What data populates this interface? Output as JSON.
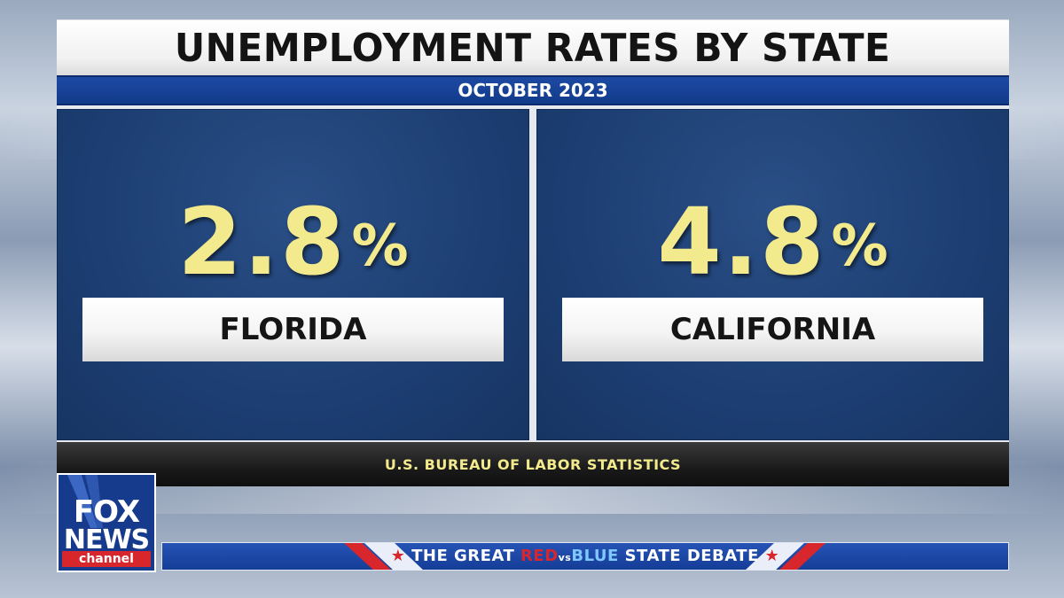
{
  "graphic": {
    "title": "UNEMPLOYMENT RATES BY STATE",
    "subtitle": "OCTOBER 2023",
    "panels": [
      {
        "rate_number": "2.8",
        "rate_sign": "%",
        "state": "FLORIDA"
      },
      {
        "rate_number": "4.8",
        "rate_sign": "%",
        "state": "CALIFORNIA"
      }
    ],
    "source": "U.S. BUREAU OF LABOR STATISTICS"
  },
  "logo": {
    "line1": "FOX",
    "line2": "NEWS",
    "line3": "channel"
  },
  "banner": {
    "star_left": "★",
    "part1": "THE GREAT ",
    "red": "RED",
    "vs": "vs",
    "blue": "BLUE",
    "part2": " STATE DEBATE",
    "star_right": "★"
  },
  "colors": {
    "panel_blue": "#1d3f74",
    "number_yellow": "#f2ea8c",
    "banner_blue": "#143d96",
    "fox_red": "#d8262d"
  }
}
